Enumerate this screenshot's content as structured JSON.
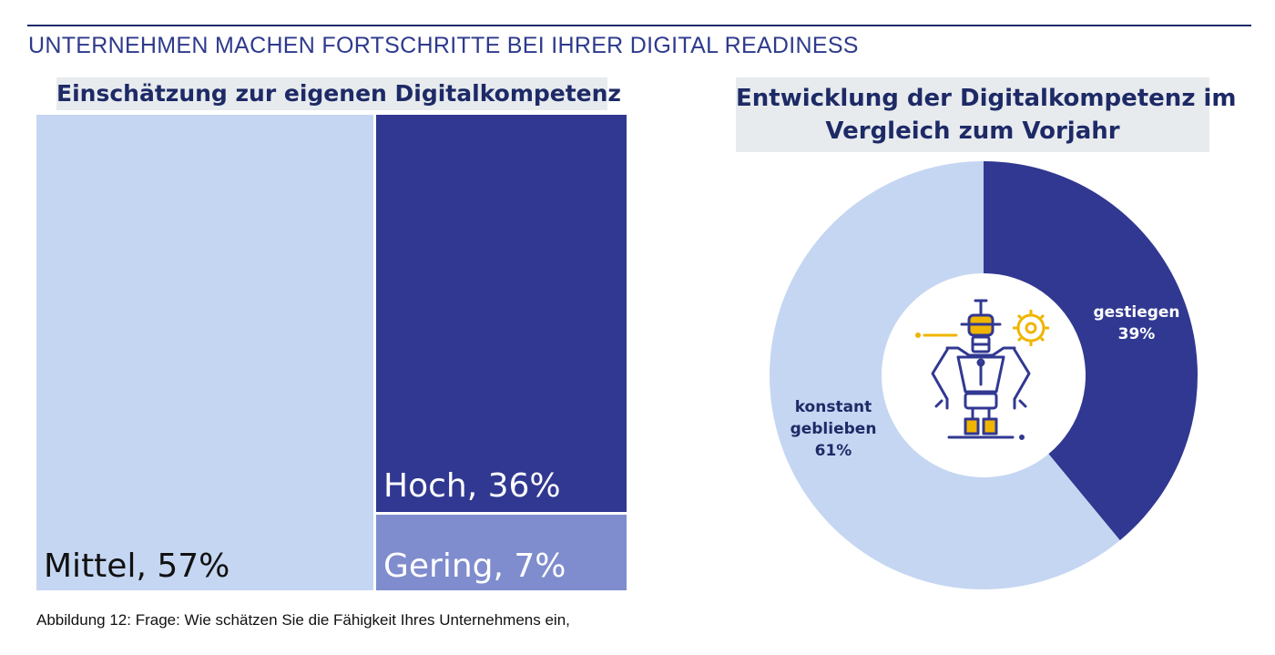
{
  "page": {
    "title": "UNTERNEHMEN MACHEN FORTSCHRITTE BEI IHRER DIGITAL READINESS",
    "caption": "Abbildung 12: Frage: Wie schätzen Sie die Fähigkeit Ihres Unternehmens ein,"
  },
  "colors": {
    "dark_blue": "#313891",
    "mid_blue": "#7f8ccd",
    "light_blue": "#c5d6f2",
    "title_blue": "#2e3a8c",
    "accent_yellow": "#f0b500"
  },
  "chart_data": [
    {
      "type": "treemap",
      "title": "Einschätzung zur eigenen Digitalkompetenz",
      "items": [
        {
          "name": "Mittel",
          "value": 57,
          "label": "Mittel, 57%"
        },
        {
          "name": "Hoch",
          "value": 36,
          "label": "Hoch, 36%"
        },
        {
          "name": "Gering",
          "value": 7,
          "label": "Gering, 7%"
        }
      ]
    },
    {
      "type": "pie",
      "variant": "donut",
      "title_lines": [
        "Entwicklung der Digitalkompetenz im",
        "Vergleich zum Vorjahr"
      ],
      "slices": [
        {
          "name": "gestiegen",
          "value": 39,
          "label_lines": [
            "gestiegen",
            "39%"
          ]
        },
        {
          "name": "konstant geblieben",
          "value": 61,
          "label_lines": [
            "konstant",
            "geblieben",
            "61%"
          ]
        }
      ],
      "center_icon": "robot-icon"
    }
  ]
}
